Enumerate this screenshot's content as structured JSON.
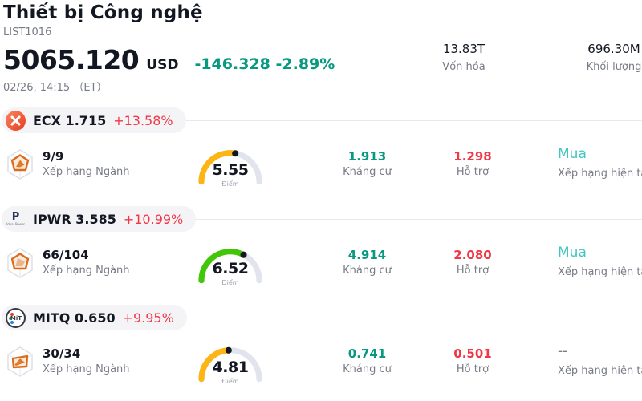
{
  "header": {
    "title": "Thiết bị Công nghệ",
    "subtitle": "LIST1016",
    "price": "5065.120",
    "currency": "USD",
    "change": "-146.328 -2.89%",
    "timestamp": "02/26, 14:15 （ET）",
    "stats": [
      {
        "value": "13.83T",
        "label": "Vốn hóa"
      },
      {
        "value": "696.30M",
        "label": "Khối lượng"
      }
    ]
  },
  "labels": {
    "score": "Điểm",
    "industry_rank": "Xếp hạng Ngành",
    "resistance": "Kháng cự",
    "support": "Hỗ trợ",
    "current_rating": "Xếp hạng hiện tại"
  },
  "colors": {
    "positive_teal": "#089981",
    "negative_red": "#f23645",
    "rating_cyan": "#3fc6c2",
    "gauge_yellow": "#fcb514",
    "gauge_green": "#41c706",
    "gauge_track": "#e2e4ed",
    "muted_text": "#787b86"
  },
  "rows": [
    {
      "ticker": "ECX",
      "price": "1.715",
      "change": "+13.58%",
      "logo_icon": "ecx-circle-x-icon",
      "rank": "9/9",
      "score": 5.55,
      "score_display": "5.55",
      "gauge_color": "#fcb514",
      "resistance": "1.913",
      "support": "1.298",
      "rating": "Mua",
      "rating_color": "#3fc6c2"
    },
    {
      "ticker": "IPWR",
      "price": "3.585",
      "change": "+10.99%",
      "logo_icon": "ideal-power-p-icon",
      "logo_text": "P",
      "logo_subtext": "Ideal Power",
      "rank": "66/104",
      "score": 6.52,
      "score_display": "6.52",
      "gauge_color": "#41c706",
      "resistance": "4.914",
      "support": "2.080",
      "rating": "Mua",
      "rating_color": "#3fc6c2"
    },
    {
      "ticker": "MITQ",
      "price": "0.650",
      "change": "+9.95%",
      "logo_icon": "mit-circle-rgb-icon",
      "logo_text": "MiT",
      "rank": "30/34",
      "score": 4.81,
      "score_display": "4.81",
      "gauge_color": "#fcb514",
      "resistance": "0.741",
      "support": "0.501",
      "rating": "--",
      "rating_color": "#787b86"
    }
  ]
}
